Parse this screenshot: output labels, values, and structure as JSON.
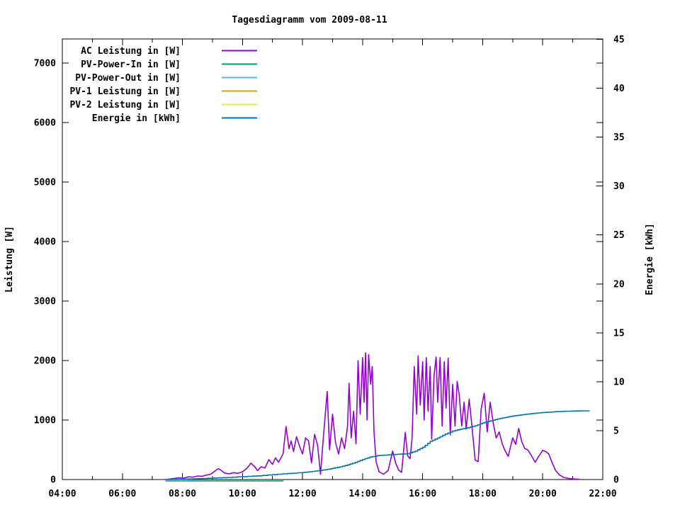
{
  "page": {
    "background": "#ffffff"
  },
  "chart_data": {
    "type": "line",
    "title": "Tagesdiagramm vom 2009-08-11",
    "xlabel": "",
    "ylabel": "Leistung [W]",
    "y2label": "Energie [kWh]",
    "grid": "off",
    "legend_position": "top-left-inside",
    "x_axis": {
      "unit": "time",
      "start_hour": 4,
      "end_hour": 22,
      "major_tick_every_hours": 2,
      "minor_tick_every_hours": 1,
      "labels": [
        "04:00",
        "06:00",
        "08:00",
        "10:00",
        "12:00",
        "14:00",
        "16:00",
        "18:00",
        "20:00",
        "22:00"
      ]
    },
    "y_axis": {
      "label": "Leistung [W]",
      "min": 0,
      "max": 7000,
      "ticks": [
        0,
        1000,
        2000,
        3000,
        4000,
        5000,
        6000,
        7000
      ]
    },
    "y2_axis": {
      "label": "Energie [kWh]",
      "min": 0,
      "max": 45,
      "ticks": [
        0,
        5,
        10,
        15,
        20,
        25,
        30,
        35,
        40,
        45
      ]
    },
    "series": [
      {
        "name": "AC Leistung in [W]",
        "color": "#9400d3",
        "axis": "y1",
        "style": "line",
        "points": [
          [
            7.42,
            0
          ],
          [
            7.6,
            10
          ],
          [
            7.75,
            20
          ],
          [
            7.9,
            30
          ],
          [
            8.05,
            25
          ],
          [
            8.2,
            45
          ],
          [
            8.35,
            40
          ],
          [
            8.5,
            60
          ],
          [
            8.65,
            55
          ],
          [
            8.8,
            75
          ],
          [
            8.95,
            90
          ],
          [
            9.1,
            150
          ],
          [
            9.2,
            185
          ],
          [
            9.3,
            150
          ],
          [
            9.4,
            110
          ],
          [
            9.55,
            95
          ],
          [
            9.7,
            115
          ],
          [
            9.85,
            105
          ],
          [
            10.0,
            130
          ],
          [
            10.15,
            190
          ],
          [
            10.28,
            275
          ],
          [
            10.4,
            220
          ],
          [
            10.5,
            150
          ],
          [
            10.62,
            215
          ],
          [
            10.75,
            195
          ],
          [
            10.88,
            335
          ],
          [
            11.0,
            255
          ],
          [
            11.1,
            365
          ],
          [
            11.2,
            290
          ],
          [
            11.35,
            430
          ],
          [
            11.45,
            890
          ],
          [
            11.55,
            520
          ],
          [
            11.62,
            650
          ],
          [
            11.7,
            470
          ],
          [
            11.8,
            720
          ],
          [
            11.9,
            560
          ],
          [
            12.0,
            430
          ],
          [
            12.1,
            700
          ],
          [
            12.2,
            650
          ],
          [
            12.3,
            280
          ],
          [
            12.4,
            760
          ],
          [
            12.5,
            580
          ],
          [
            12.6,
            90
          ],
          [
            12.7,
            750
          ],
          [
            12.82,
            1480
          ],
          [
            12.9,
            500
          ],
          [
            13.0,
            1100
          ],
          [
            13.1,
            620
          ],
          [
            13.2,
            430
          ],
          [
            13.3,
            700
          ],
          [
            13.4,
            520
          ],
          [
            13.5,
            900
          ],
          [
            13.55,
            1620
          ],
          [
            13.62,
            700
          ],
          [
            13.7,
            1150
          ],
          [
            13.78,
            600
          ],
          [
            13.85,
            2000
          ],
          [
            13.92,
            1100
          ],
          [
            14.0,
            2050
          ],
          [
            14.05,
            1300
          ],
          [
            14.1,
            2130
          ],
          [
            14.15,
            1000
          ],
          [
            14.2,
            2100
          ],
          [
            14.27,
            1600
          ],
          [
            14.32,
            1900
          ],
          [
            14.38,
            800
          ],
          [
            14.45,
            300
          ],
          [
            14.55,
            130
          ],
          [
            14.7,
            90
          ],
          [
            14.85,
            150
          ],
          [
            15.0,
            480
          ],
          [
            15.1,
            280
          ],
          [
            15.2,
            160
          ],
          [
            15.3,
            120
          ],
          [
            15.42,
            790
          ],
          [
            15.5,
            400
          ],
          [
            15.58,
            350
          ],
          [
            15.65,
            700
          ],
          [
            15.72,
            1900
          ],
          [
            15.8,
            1100
          ],
          [
            15.85,
            2080
          ],
          [
            15.92,
            1250
          ],
          [
            16.0,
            1980
          ],
          [
            16.05,
            1000
          ],
          [
            16.12,
            2050
          ],
          [
            16.18,
            1150
          ],
          [
            16.25,
            1900
          ],
          [
            16.3,
            680
          ],
          [
            16.38,
            1750
          ],
          [
            16.45,
            2060
          ],
          [
            16.5,
            1300
          ],
          [
            16.58,
            2050
          ],
          [
            16.65,
            900
          ],
          [
            16.72,
            1980
          ],
          [
            16.78,
            1200
          ],
          [
            16.85,
            2040
          ],
          [
            16.92,
            750
          ],
          [
            17.0,
            1600
          ],
          [
            17.08,
            900
          ],
          [
            17.15,
            1650
          ],
          [
            17.22,
            1420
          ],
          [
            17.3,
            900
          ],
          [
            17.38,
            1300
          ],
          [
            17.45,
            850
          ],
          [
            17.55,
            1350
          ],
          [
            17.65,
            850
          ],
          [
            17.75,
            330
          ],
          [
            17.85,
            300
          ],
          [
            17.95,
            1190
          ],
          [
            18.05,
            1450
          ],
          [
            18.15,
            800
          ],
          [
            18.25,
            1300
          ],
          [
            18.35,
            950
          ],
          [
            18.45,
            700
          ],
          [
            18.55,
            800
          ],
          [
            18.65,
            600
          ],
          [
            18.75,
            480
          ],
          [
            18.85,
            390
          ],
          [
            19.0,
            700
          ],
          [
            19.1,
            590
          ],
          [
            19.2,
            860
          ],
          [
            19.3,
            640
          ],
          [
            19.4,
            520
          ],
          [
            19.5,
            500
          ],
          [
            19.6,
            420
          ],
          [
            19.75,
            290
          ],
          [
            19.85,
            380
          ],
          [
            20.0,
            490
          ],
          [
            20.1,
            470
          ],
          [
            20.2,
            430
          ],
          [
            20.3,
            300
          ],
          [
            20.42,
            160
          ],
          [
            20.55,
            80
          ],
          [
            20.7,
            35
          ],
          [
            20.9,
            15
          ],
          [
            21.1,
            8
          ],
          [
            21.22,
            3
          ]
        ]
      },
      {
        "name": "PV-Power-In in [W]",
        "color": "#009e73",
        "axis": "y1",
        "style": "line",
        "py_offset": 2,
        "points": [
          [
            7.45,
            0
          ],
          [
            8.5,
            0
          ],
          [
            9.5,
            0
          ],
          [
            10.5,
            0
          ],
          [
            11.35,
            0
          ]
        ]
      },
      {
        "name": "PV-Power-Out in [W]",
        "color": "#56b4e9",
        "axis": "y1",
        "style": "line",
        "points": []
      },
      {
        "name": "PV-1 Leistung in [W]",
        "color": "#e69f00",
        "axis": "y1",
        "style": "line",
        "points": []
      },
      {
        "name": "PV-2 Leistung in [W]",
        "color": "#f0e442",
        "axis": "y1",
        "style": "line",
        "points": []
      },
      {
        "name": "Energie in [kWh]",
        "color": "#0072b2",
        "axis": "y2",
        "style": "steps",
        "points": [
          [
            7.5,
            0
          ],
          [
            8.0,
            0.04
          ],
          [
            8.5,
            0.09
          ],
          [
            9.0,
            0.15
          ],
          [
            9.5,
            0.22
          ],
          [
            10.0,
            0.3
          ],
          [
            10.5,
            0.38
          ],
          [
            11.0,
            0.5
          ],
          [
            11.5,
            0.62
          ],
          [
            12.0,
            0.72
          ],
          [
            12.25,
            0.8
          ],
          [
            12.5,
            0.9
          ],
          [
            12.75,
            1.0
          ],
          [
            13.0,
            1.15
          ],
          [
            13.25,
            1.3
          ],
          [
            13.5,
            1.5
          ],
          [
            13.75,
            1.75
          ],
          [
            14.0,
            2.05
          ],
          [
            14.25,
            2.3
          ],
          [
            14.5,
            2.45
          ],
          [
            14.75,
            2.5
          ],
          [
            15.0,
            2.55
          ],
          [
            15.25,
            2.6
          ],
          [
            15.5,
            2.65
          ],
          [
            15.75,
            2.9
          ],
          [
            16.0,
            3.3
          ],
          [
            16.25,
            3.9
          ],
          [
            16.5,
            4.25
          ],
          [
            16.75,
            4.65
          ],
          [
            17.0,
            4.95
          ],
          [
            17.25,
            5.15
          ],
          [
            17.5,
            5.3
          ],
          [
            17.75,
            5.5
          ],
          [
            18.0,
            5.8
          ],
          [
            18.25,
            6.0
          ],
          [
            18.5,
            6.2
          ],
          [
            18.75,
            6.35
          ],
          [
            19.0,
            6.5
          ],
          [
            19.25,
            6.6
          ],
          [
            19.5,
            6.7
          ],
          [
            19.75,
            6.78
          ],
          [
            20.0,
            6.85
          ],
          [
            20.25,
            6.9
          ],
          [
            20.5,
            6.95
          ],
          [
            20.75,
            6.98
          ],
          [
            21.0,
            7.0
          ],
          [
            21.3,
            7.02
          ],
          [
            21.55,
            7.02
          ]
        ]
      }
    ]
  }
}
